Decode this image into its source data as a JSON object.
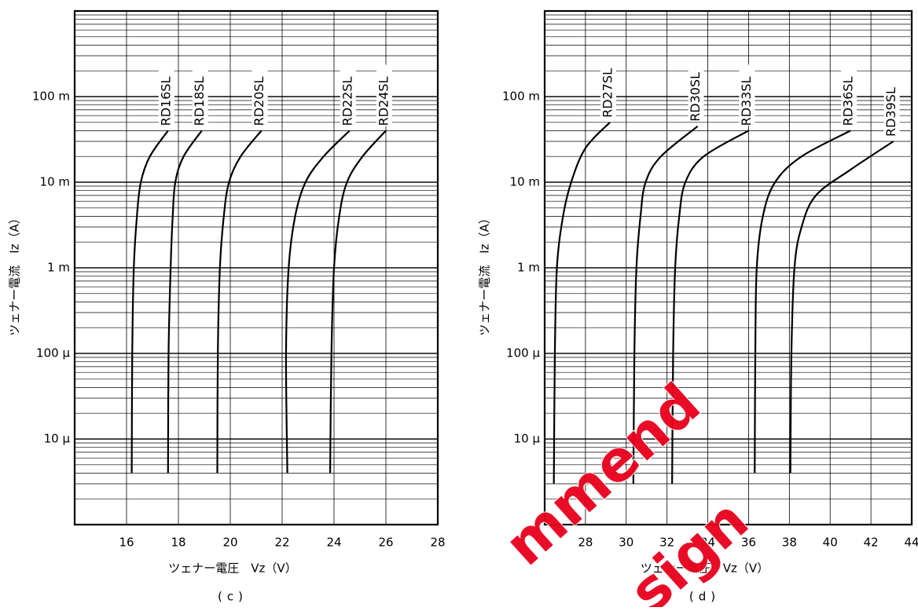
{
  "chart_data": [
    {
      "type": "line",
      "subtitle": "(c)",
      "xlabel": "ツェナー電圧　Vz（V）",
      "ylabel": "ツェナー電流　Iz（A）",
      "xlim": [
        14,
        28
      ],
      "xticks": [
        16,
        18,
        20,
        22,
        24,
        26,
        28
      ],
      "ylim": [
        1e-06,
        1
      ],
      "ylog": true,
      "grid": true,
      "yticks": [
        {
          "value": 0.1,
          "label": "100 m"
        },
        {
          "value": 0.01,
          "label": "10 m"
        },
        {
          "value": 0.001,
          "label": "1 m"
        },
        {
          "value": 0.0001,
          "label": "100 μ"
        },
        {
          "value": 1e-05,
          "label": "10 μ"
        }
      ],
      "series": [
        {
          "name": "RD16SL",
          "color": "#000000",
          "x": [
            16.2,
            16.22,
            16.28,
            16.4,
            16.55,
            16.9,
            17.6
          ],
          "values": [
            4e-06,
            0.0001,
            0.001,
            0.004,
            0.01,
            0.02,
            0.04
          ]
        },
        {
          "name": "RD18SL",
          "color": "#000000",
          "x": [
            17.6,
            17.62,
            17.7,
            17.78,
            17.88,
            18.2,
            18.9
          ],
          "values": [
            4e-06,
            0.0001,
            0.001,
            0.004,
            0.01,
            0.02,
            0.04
          ]
        },
        {
          "name": "RD20SL",
          "color": "#000000",
          "x": [
            19.5,
            19.52,
            19.6,
            19.75,
            19.95,
            20.4,
            21.2
          ],
          "values": [
            4e-06,
            0.0001,
            0.001,
            0.004,
            0.01,
            0.02,
            0.04
          ]
        },
        {
          "name": "RD22SL",
          "color": "#000000",
          "x": [
            22.2,
            22.15,
            22.25,
            22.5,
            22.9,
            23.6,
            24.6
          ],
          "values": [
            4e-06,
            0.0001,
            0.001,
            0.004,
            0.01,
            0.02,
            0.04
          ]
        },
        {
          "name": "RD24SL",
          "color": "#000000",
          "x": [
            23.85,
            23.9,
            24.0,
            24.2,
            24.5,
            25.1,
            26.0
          ],
          "values": [
            4e-06,
            0.0001,
            0.001,
            0.004,
            0.01,
            0.02,
            0.04
          ]
        }
      ]
    },
    {
      "type": "line",
      "subtitle": "(d)",
      "xlabel": "ツェナー電圧　Vz（V）",
      "ylabel": "ツェナー電流　Iz（A）",
      "xlim": [
        26,
        44
      ],
      "xticks": [
        28,
        30,
        32,
        34,
        36,
        38,
        40,
        42,
        44
      ],
      "ylim": [
        1e-06,
        1
      ],
      "ylog": true,
      "grid": true,
      "yticks": [
        {
          "value": 0.1,
          "label": "100 m"
        },
        {
          "value": 0.01,
          "label": "10 m"
        },
        {
          "value": 0.001,
          "label": "1 m"
        },
        {
          "value": 0.0001,
          "label": "100 μ"
        },
        {
          "value": 1e-05,
          "label": "10 μ"
        }
      ],
      "series": [
        {
          "name": "RD27SL",
          "color": "#000000",
          "x": [
            26.45,
            26.5,
            26.6,
            26.9,
            27.3,
            28.0,
            29.2
          ],
          "values": [
            3e-06,
            0.0001,
            0.001,
            0.004,
            0.01,
            0.025,
            0.05
          ]
        },
        {
          "name": "RD30SL",
          "color": "#000000",
          "x": [
            30.35,
            30.4,
            30.5,
            30.7,
            30.95,
            31.7,
            33.5
          ],
          "values": [
            3e-06,
            0.0001,
            0.001,
            0.004,
            0.01,
            0.02,
            0.045
          ]
        },
        {
          "name": "RD33SL",
          "color": "#000000",
          "x": [
            32.25,
            32.3,
            32.4,
            32.6,
            32.9,
            33.8,
            36.0
          ],
          "values": [
            3e-06,
            0.0001,
            0.001,
            0.004,
            0.01,
            0.02,
            0.04
          ]
        },
        {
          "name": "RD36SL",
          "color": "#000000",
          "x": [
            36.3,
            36.33,
            36.4,
            36.7,
            37.3,
            38.6,
            41.0
          ],
          "values": [
            4e-06,
            0.0001,
            0.001,
            0.004,
            0.01,
            0.02,
            0.04
          ]
        },
        {
          "name": "RD39SL",
          "color": "#000000",
          "x": [
            38.05,
            38.1,
            38.25,
            38.6,
            39.3,
            41.0,
            43.1
          ],
          "values": [
            4e-06,
            0.0001,
            0.001,
            0.003,
            0.007,
            0.014,
            0.03
          ]
        }
      ]
    }
  ],
  "watermark": [
    "mmend",
    "sign"
  ]
}
